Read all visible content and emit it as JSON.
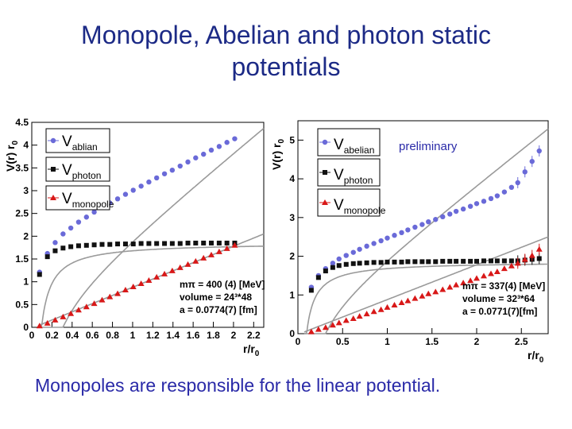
{
  "slide": {
    "title_line1": "Monopole, Abelian and photon static",
    "title_line2": "potentials",
    "footer": "Monopoles are responsible for the linear potential."
  },
  "colors": {
    "abelian": "#6a6ad8",
    "photon": "#111111",
    "monopole": "#d81818",
    "fit": "#9a9a9a",
    "title": "#1c2a86"
  },
  "chart_data": [
    {
      "type": "scatter",
      "xlabel": "r/r0",
      "ylabel": "V(r) r0",
      "xlim": [
        0,
        2.3
      ],
      "ylim": [
        0,
        4.5
      ],
      "xticks": [
        0,
        0.2,
        0.4,
        0.6,
        0.8,
        1,
        1.2,
        1.4,
        1.6,
        1.8,
        2,
        2.2
      ],
      "xticklabels": [
        "0",
        "0.2",
        "0.4",
        "0.6",
        "0.8",
        "1",
        "1.2",
        "1.4",
        "1.6",
        "1.8",
        "2",
        "2.2"
      ],
      "yticks": [
        0,
        0.5,
        1,
        1.5,
        2,
        2.5,
        3,
        3.5,
        4,
        4.5
      ],
      "yticklabels": [
        "0",
        "0.5",
        "1",
        "1.5",
        "2",
        "2.5",
        "3",
        "3.5",
        "4",
        "4.5"
      ],
      "legend_position": "top-left",
      "annotations": [
        "mπ = 400 (4) [MeV]",
        "volume = 24³*48",
        "a = 0.0774(7) [fm]"
      ],
      "series": [
        {
          "legend": [
            "V",
            "ablian"
          ],
          "marker": "circle",
          "x": [
            0.077,
            0.155,
            0.232,
            0.31,
            0.387,
            0.464,
            0.542,
            0.619,
            0.697,
            0.774,
            0.851,
            0.929,
            1.006,
            1.084,
            1.161,
            1.238,
            1.316,
            1.393,
            1.471,
            1.548,
            1.625,
            1.703,
            1.78,
            1.858,
            1.935,
            2.012
          ],
          "y": [
            1.21,
            1.62,
            1.86,
            2.05,
            2.18,
            2.31,
            2.42,
            2.53,
            2.63,
            2.73,
            2.82,
            2.92,
            3.01,
            3.1,
            3.19,
            3.28,
            3.37,
            3.45,
            3.54,
            3.63,
            3.72,
            3.8,
            3.89,
            3.97,
            4.06,
            4.14
          ]
        },
        {
          "legend": [
            "V",
            "photon"
          ],
          "marker": "square",
          "x": [
            0.077,
            0.155,
            0.232,
            0.31,
            0.387,
            0.464,
            0.542,
            0.619,
            0.697,
            0.774,
            0.851,
            0.929,
            1.006,
            1.084,
            1.161,
            1.238,
            1.316,
            1.393,
            1.471,
            1.548,
            1.625,
            1.703,
            1.78,
            1.858,
            1.935,
            2.012
          ],
          "y": [
            1.16,
            1.55,
            1.68,
            1.74,
            1.77,
            1.79,
            1.8,
            1.81,
            1.82,
            1.82,
            1.83,
            1.83,
            1.83,
            1.84,
            1.84,
            1.84,
            1.84,
            1.84,
            1.84,
            1.85,
            1.85,
            1.85,
            1.85,
            1.85,
            1.85,
            1.85
          ]
        },
        {
          "legend": [
            "V",
            "monopole"
          ],
          "marker": "triangle",
          "x": [
            0.077,
            0.155,
            0.232,
            0.31,
            0.387,
            0.464,
            0.542,
            0.619,
            0.697,
            0.774,
            0.851,
            0.929,
            1.006,
            1.084,
            1.161,
            1.238,
            1.316,
            1.393,
            1.471,
            1.548,
            1.625,
            1.703,
            1.78,
            1.858,
            1.935,
            2.012
          ],
          "y": [
            0.03,
            0.09,
            0.16,
            0.23,
            0.3,
            0.38,
            0.45,
            0.52,
            0.6,
            0.67,
            0.74,
            0.82,
            0.89,
            0.96,
            1.03,
            1.1,
            1.17,
            1.24,
            1.31,
            1.38,
            1.45,
            1.52,
            1.59,
            1.66,
            1.73,
            1.8
          ]
        }
      ]
    },
    {
      "type": "scatter",
      "xlabel": "r/r0",
      "ylabel": "V(r) r0",
      "xlim": [
        0,
        2.8
      ],
      "ylim": [
        0,
        5.5
      ],
      "xticks": [
        0,
        0.5,
        1,
        1.5,
        2,
        2.5
      ],
      "xticklabels": [
        "0",
        "0.5",
        "1",
        "1.5",
        "2",
        "2.5"
      ],
      "yticks": [
        0,
        1,
        2,
        3,
        4,
        5
      ],
      "yticklabels": [
        "0",
        "1",
        "2",
        "3",
        "4",
        "5"
      ],
      "legend_position": "top-left",
      "text_label": "preliminary",
      "annotations": [
        "mπ = 337(4) [MeV]",
        "volume = 32³*64",
        "a = 0.0771(7)[fm]"
      ],
      "series": [
        {
          "legend": [
            "V",
            "abelian"
          ],
          "marker": "circle",
          "x": [
            0.15,
            0.23,
            0.31,
            0.39,
            0.46,
            0.54,
            0.62,
            0.69,
            0.77,
            0.85,
            0.93,
            1.0,
            1.08,
            1.16,
            1.23,
            1.31,
            1.39,
            1.46,
            1.54,
            1.62,
            1.7,
            1.77,
            1.85,
            1.93,
            2.0,
            2.08,
            2.16,
            2.23,
            2.31,
            2.39,
            2.46,
            2.54,
            2.62,
            2.7
          ],
          "y": [
            1.2,
            1.5,
            1.68,
            1.82,
            1.93,
            2.02,
            2.1,
            2.18,
            2.26,
            2.33,
            2.4,
            2.47,
            2.54,
            2.61,
            2.68,
            2.75,
            2.82,
            2.89,
            2.95,
            3.02,
            3.09,
            3.16,
            3.22,
            3.29,
            3.36,
            3.42,
            3.49,
            3.56,
            3.66,
            3.78,
            3.9,
            4.18,
            4.45,
            4.72
          ]
        },
        {
          "legend": [
            "V",
            "photon"
          ],
          "marker": "square",
          "x": [
            0.15,
            0.23,
            0.31,
            0.39,
            0.46,
            0.54,
            0.62,
            0.69,
            0.77,
            0.85,
            0.93,
            1.0,
            1.08,
            1.16,
            1.23,
            1.31,
            1.39,
            1.46,
            1.54,
            1.62,
            1.7,
            1.77,
            1.85,
            1.93,
            2.0,
            2.08,
            2.16,
            2.23,
            2.31,
            2.39,
            2.46,
            2.54,
            2.62,
            2.7
          ],
          "y": [
            1.12,
            1.45,
            1.62,
            1.71,
            1.76,
            1.79,
            1.81,
            1.82,
            1.83,
            1.84,
            1.84,
            1.85,
            1.85,
            1.85,
            1.86,
            1.86,
            1.86,
            1.86,
            1.86,
            1.87,
            1.87,
            1.87,
            1.87,
            1.87,
            1.87,
            1.88,
            1.88,
            1.88,
            1.88,
            1.88,
            1.88,
            1.9,
            1.92,
            1.94
          ]
        },
        {
          "legend": [
            "V",
            "monopole"
          ],
          "marker": "triangle",
          "x": [
            0.15,
            0.23,
            0.31,
            0.39,
            0.46,
            0.54,
            0.62,
            0.69,
            0.77,
            0.85,
            0.93,
            1.0,
            1.08,
            1.16,
            1.23,
            1.31,
            1.39,
            1.46,
            1.54,
            1.62,
            1.7,
            1.77,
            1.85,
            1.93,
            2.0,
            2.08,
            2.16,
            2.23,
            2.31,
            2.39,
            2.46,
            2.54,
            2.62,
            2.7
          ],
          "y": [
            0.05,
            0.11,
            0.16,
            0.22,
            0.28,
            0.34,
            0.39,
            0.45,
            0.51,
            0.57,
            0.62,
            0.68,
            0.74,
            0.8,
            0.85,
            0.91,
            0.97,
            1.03,
            1.08,
            1.14,
            1.2,
            1.26,
            1.31,
            1.37,
            1.43,
            1.49,
            1.55,
            1.6,
            1.68,
            1.75,
            1.82,
            1.92,
            2.02,
            2.18
          ]
        }
      ]
    }
  ]
}
